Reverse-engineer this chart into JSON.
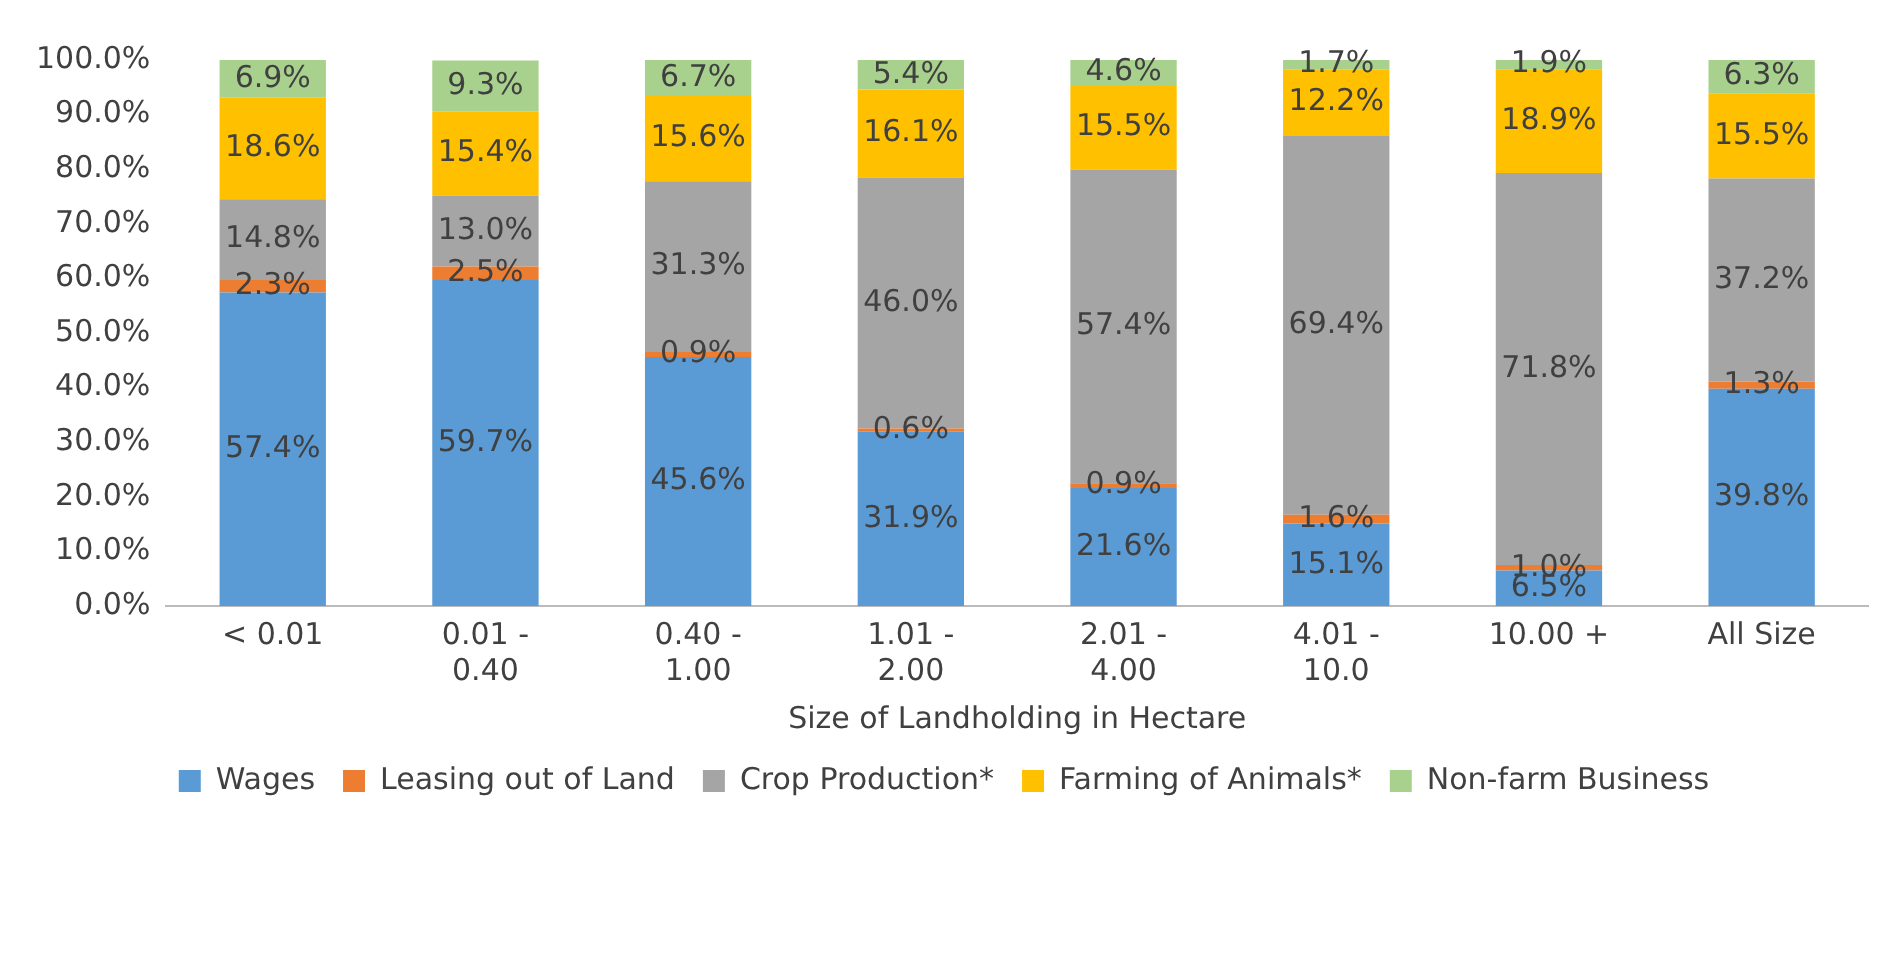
{
  "chart_data": {
    "type": "bar",
    "stacked": true,
    "xlabel": "Size of Landholding in Hectare",
    "categories": [
      "< 0.01",
      "0.01 - 0.40",
      "0.40 - 1.00",
      "1.01 - 2.00",
      "2.01 - 4.00",
      "4.01 - 10.0",
      "10.00 +",
      "All Size"
    ],
    "ylim": [
      0,
      100
    ],
    "yticks": [
      {
        "value": 0,
        "label": "0.0%"
      },
      {
        "value": 10,
        "label": "10.0%"
      },
      {
        "value": 20,
        "label": "20.0%"
      },
      {
        "value": 30,
        "label": "30.0%"
      },
      {
        "value": 40,
        "label": "40.0%"
      },
      {
        "value": 50,
        "label": "50.0%"
      },
      {
        "value": 60,
        "label": "60.0%"
      },
      {
        "value": 70,
        "label": "70.0%"
      },
      {
        "value": 80,
        "label": "80.0%"
      },
      {
        "value": 90,
        "label": "90.0%"
      },
      {
        "value": 100,
        "label": "100.0%"
      }
    ],
    "grid": false,
    "legend": "bottom",
    "series": [
      {
        "name": "Wages",
        "color": "#5b9bd5",
        "values": [
          57.4,
          59.7,
          45.6,
          31.9,
          21.6,
          15.1,
          6.5,
          39.8
        ],
        "value_labels": [
          "57.4%",
          "59.7%",
          "45.6%",
          "31.9%",
          "21.6%",
          "15.1%",
          "6.5%",
          "39.8%"
        ]
      },
      {
        "name": "Leasing out of Land",
        "color": "#ed7d31",
        "values": [
          2.3,
          2.5,
          0.9,
          0.6,
          0.9,
          1.6,
          1.0,
          1.3
        ],
        "value_labels": [
          "2.3%",
          "2.5%",
          "0.9%",
          "0.6%",
          "0.9%",
          "1.6%",
          "1.0%",
          "1.3%"
        ]
      },
      {
        "name": "Crop Production*",
        "color": "#a5a5a5",
        "values": [
          14.8,
          13.0,
          31.3,
          46.0,
          57.4,
          69.4,
          71.8,
          37.2
        ],
        "value_labels": [
          "14.8%",
          "13.0%",
          "31.3%",
          "46.0%",
          "57.4%",
          "69.4%",
          "71.8%",
          "37.2%"
        ]
      },
      {
        "name": "Farming of Animals*",
        "color": "#ffc000",
        "values": [
          18.6,
          15.4,
          15.6,
          16.1,
          15.5,
          12.2,
          18.9,
          15.5
        ],
        "value_labels": [
          "18.6%",
          "15.4%",
          "15.6%",
          "16.1%",
          "15.5%",
          "12.2%",
          "18.9%",
          "15.5%"
        ]
      },
      {
        "name": "Non-farm Business",
        "color": "#a9d18e",
        "values": [
          6.9,
          9.3,
          6.7,
          5.4,
          4.6,
          1.7,
          1.9,
          6.3
        ],
        "value_labels": [
          "6.9%",
          "9.3%",
          "6.7%",
          "5.4%",
          "4.6%",
          "1.7%",
          "1.9%",
          "6.3%"
        ]
      }
    ]
  }
}
